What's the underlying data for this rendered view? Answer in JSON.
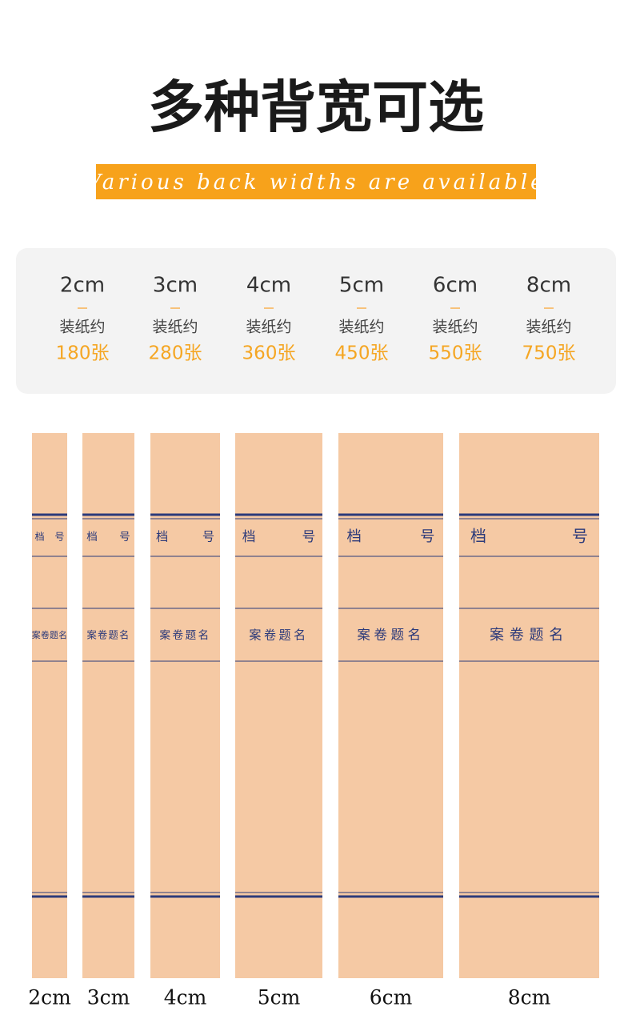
{
  "header": {
    "title": "多种背宽可选",
    "subtitle": "Various back widths are available"
  },
  "options": [
    {
      "width": "2cm",
      "label": "装纸约",
      "count": "180张"
    },
    {
      "width": "3cm",
      "label": "装纸约",
      "count": "280张"
    },
    {
      "width": "4cm",
      "label": "装纸约",
      "count": "360张"
    },
    {
      "width": "5cm",
      "label": "装纸约",
      "count": "450张"
    },
    {
      "width": "6cm",
      "label": "装纸约",
      "count": "550张"
    },
    {
      "width": "8cm",
      "label": "装纸约",
      "count": "750张"
    }
  ],
  "spines": [
    {
      "label": "2cm",
      "field_left": "档",
      "field_right": "号",
      "title_field": "案卷题名"
    },
    {
      "label": "3cm",
      "field_left": "档",
      "field_right": "号",
      "title_field": "案卷题名"
    },
    {
      "label": "4cm",
      "field_left": "档",
      "field_right": "号",
      "title_field": "案卷题名"
    },
    {
      "label": "5cm",
      "field_left": "档",
      "field_right": "号",
      "title_field": "案卷题名"
    },
    {
      "label": "6cm",
      "field_left": "档",
      "field_right": "号",
      "title_field": "案卷题名"
    },
    {
      "label": "8cm",
      "field_left": "档",
      "field_right": "号",
      "title_field": "案卷题名"
    }
  ]
}
